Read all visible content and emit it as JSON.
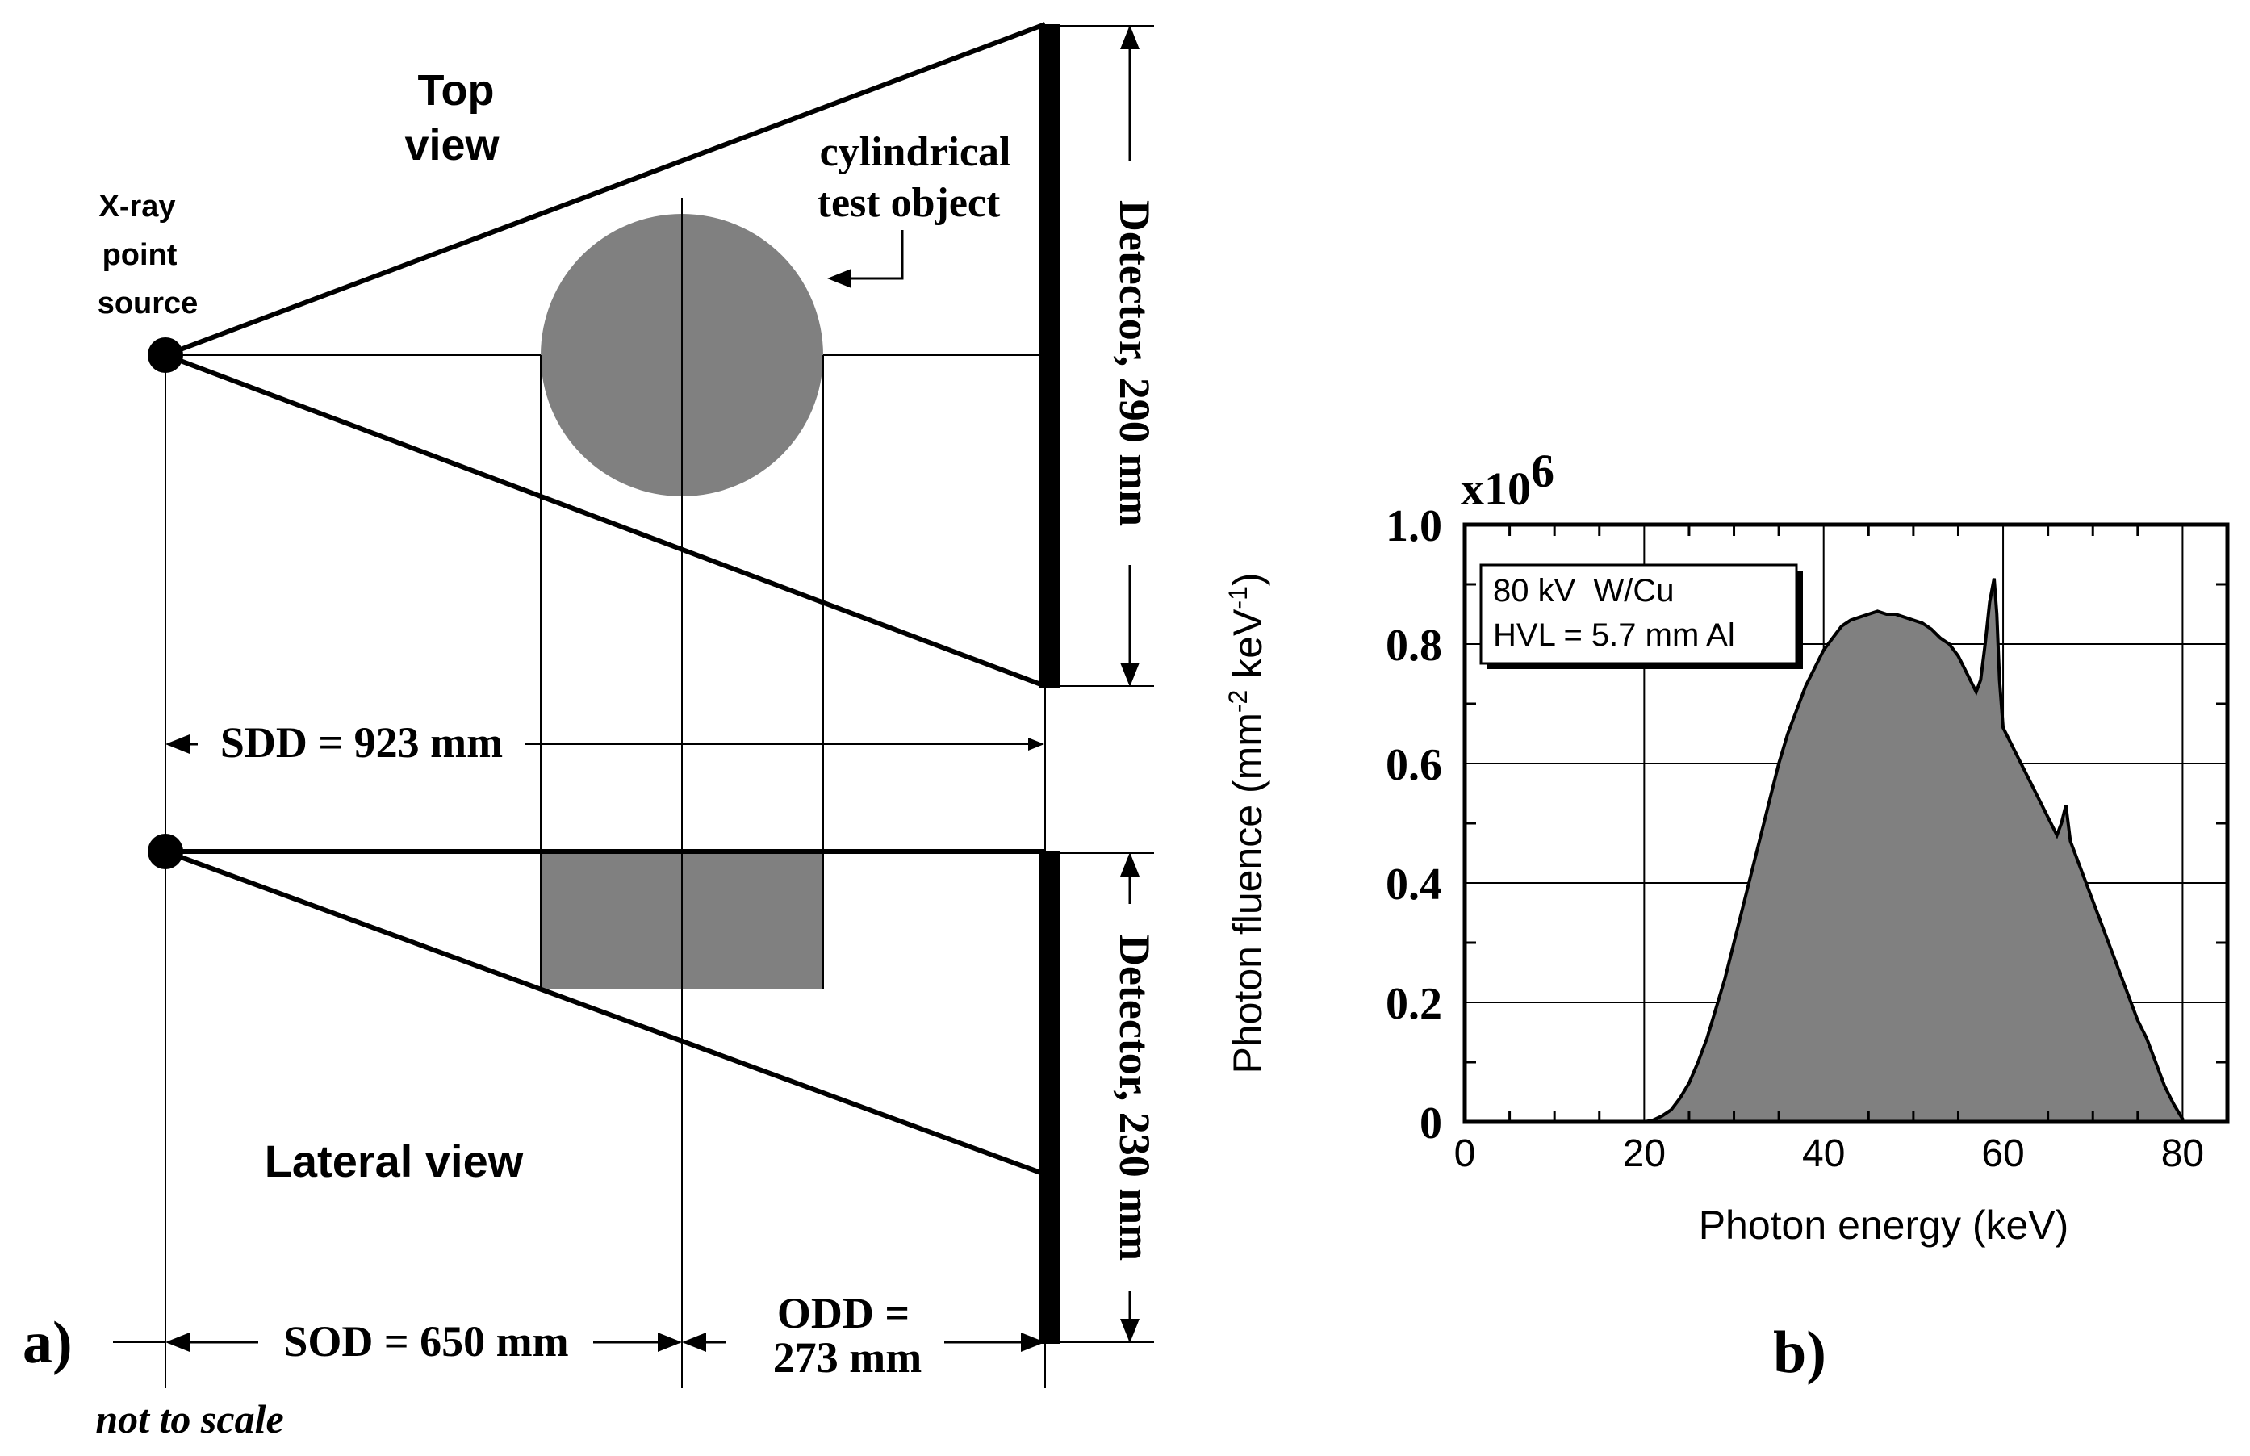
{
  "panel_a": {
    "label": "a)",
    "top_view_line1": "Top",
    "top_view_line2": "view",
    "source_line1": "X-ray",
    "source_line2": "point",
    "source_line3": "source",
    "object_line1": "cylindrical",
    "object_line2": "test object",
    "detector_top": "Detector, 290 mm",
    "sdd": "SDD = 923 mm",
    "lateral_view": "Lateral view",
    "detector_bottom": "Detector, 230 mm",
    "sod": "SOD = 650 mm",
    "odd_line1": "ODD =",
    "odd_line2": "273 mm",
    "note": "not to scale",
    "object_color": "#808080"
  },
  "panel_b": {
    "label": "b)",
    "legend_line1": "80 kV  W/Cu",
    "legend_line2": "HVL = 5.7 mm Al",
    "scale_base": "x10",
    "scale_exp": "6",
    "fill_color": "#808080"
  },
  "chart_data": {
    "type": "area",
    "title": "",
    "xlabel": "Photon energy (keV)",
    "ylabel": "Photon fluence (mm",
    "ylabel_exp1": "-2",
    "ylabel_mid": " keV",
    "ylabel_exp2": "-1",
    "ylabel_end": ")",
    "xlim": [
      0,
      85
    ],
    "ylim": [
      0,
      1.0
    ],
    "xticks": [
      0,
      20,
      40,
      60,
      80
    ],
    "xtick_labels": [
      "0",
      "20",
      "40",
      "60",
      "80"
    ],
    "yticks": [
      0,
      0.2,
      0.4,
      0.6,
      0.8,
      1.0
    ],
    "ytick_labels": [
      "0",
      "0.2",
      "0.4",
      "0.6",
      "0.8",
      "1.0"
    ],
    "grid": true,
    "series": [
      {
        "x": [
          0,
          20,
          21,
          22,
          23,
          24,
          25,
          26,
          27,
          28,
          29,
          30,
          31,
          32,
          33,
          34,
          35,
          36,
          37,
          38,
          39,
          40,
          41,
          42,
          43,
          44,
          45,
          46,
          47,
          48,
          49,
          50,
          51,
          52,
          53,
          54,
          55,
          56,
          57,
          57.5,
          58,
          58.5,
          59,
          59.3,
          59.6,
          60,
          61,
          62,
          63,
          64,
          65,
          66,
          66.5,
          67,
          67.5,
          68,
          69,
          70,
          71,
          72,
          73,
          74,
          75,
          76,
          77,
          78,
          79,
          80
        ],
        "y": [
          0,
          0,
          0.003,
          0.01,
          0.02,
          0.04,
          0.065,
          0.1,
          0.14,
          0.19,
          0.24,
          0.3,
          0.36,
          0.42,
          0.48,
          0.54,
          0.6,
          0.65,
          0.69,
          0.73,
          0.76,
          0.79,
          0.81,
          0.83,
          0.84,
          0.845,
          0.85,
          0.855,
          0.85,
          0.85,
          0.845,
          0.84,
          0.835,
          0.825,
          0.81,
          0.8,
          0.78,
          0.75,
          0.72,
          0.74,
          0.8,
          0.87,
          0.91,
          0.85,
          0.74,
          0.66,
          0.63,
          0.6,
          0.57,
          0.54,
          0.51,
          0.48,
          0.5,
          0.53,
          0.47,
          0.45,
          0.41,
          0.37,
          0.33,
          0.29,
          0.25,
          0.21,
          0.17,
          0.14,
          0.1,
          0.06,
          0.03,
          0.005
        ]
      }
    ]
  }
}
